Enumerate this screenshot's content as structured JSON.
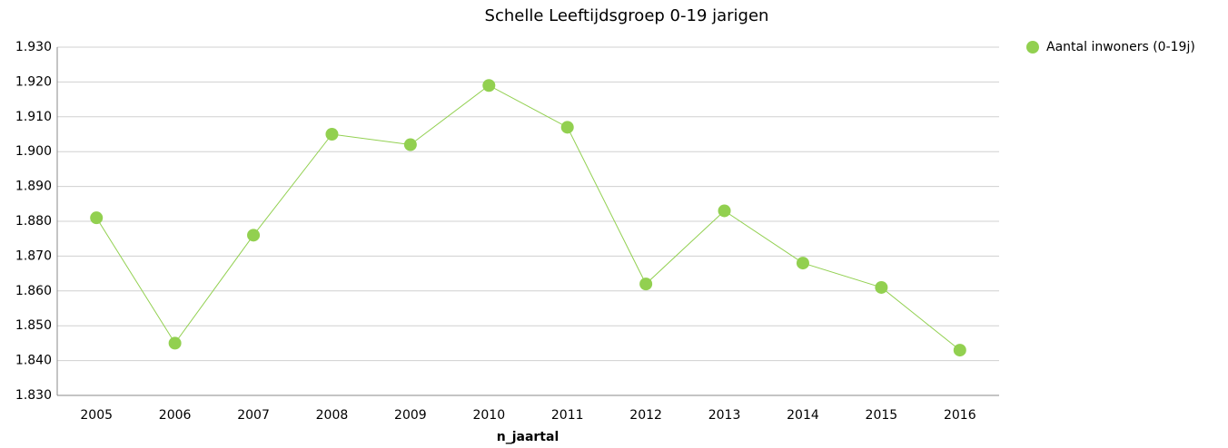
{
  "chart_data": {
    "type": "line",
    "title": "Schelle  Leeftijdsgroep 0-19 jarigen",
    "x_label": "n_jaartal",
    "categories": [
      "2005",
      "2006",
      "2007",
      "2008",
      "2009",
      "2010",
      "2011",
      "2012",
      "2013",
      "2014",
      "2015",
      "2016"
    ],
    "series": [
      {
        "name": "Aantal inwoners (0-19j)",
        "color": "#92d050",
        "values": [
          1881,
          1845,
          1876,
          1905,
          1902,
          1919,
          1907,
          1862,
          1883,
          1868,
          1861,
          1843
        ]
      }
    ],
    "ylim": [
      1830,
      1930
    ],
    "yticks": [
      {
        "value": 1830,
        "label": "1.830"
      },
      {
        "value": 1840,
        "label": "1.840"
      },
      {
        "value": 1850,
        "label": "1.850"
      },
      {
        "value": 1860,
        "label": "1.860"
      },
      {
        "value": 1870,
        "label": "1.870"
      },
      {
        "value": 1880,
        "label": "1.880"
      },
      {
        "value": 1890,
        "label": "1.890"
      },
      {
        "value": 1900,
        "label": "1.900"
      },
      {
        "value": 1910,
        "label": "1.910"
      },
      {
        "value": 1920,
        "label": "1.920"
      },
      {
        "value": 1930,
        "label": "1.930"
      }
    ],
    "grid": true,
    "legend": "top-right"
  }
}
